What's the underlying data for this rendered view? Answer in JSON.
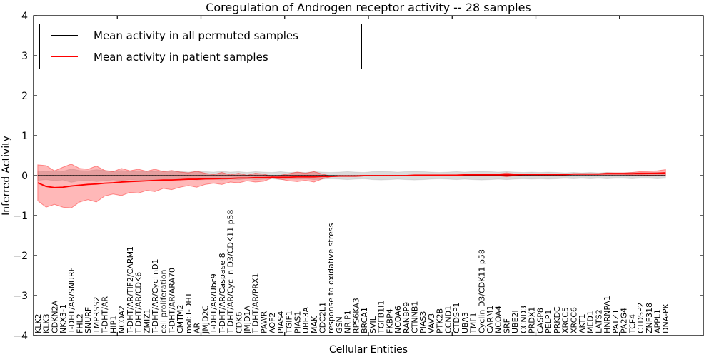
{
  "title": "Coregulation of Androgen receptor activity -- 28 samples",
  "legend": {
    "entries": [
      {
        "label": "Mean activity in all permuted samples",
        "color": "#000000"
      },
      {
        "label": "Mean activity in patient samples",
        "color": "#ff0000"
      }
    ]
  },
  "chart_data": {
    "type": "line",
    "title": "Coregulation of Androgen receptor activity -- 28 samples",
    "xlabel": "Cellular Entities",
    "ylabel": "Inferred Activity",
    "ylim": [
      -4,
      4
    ],
    "xlim": [
      0,
      80
    ],
    "ytick_values": [
      4,
      3,
      2,
      1,
      0,
      -1,
      -2,
      -3,
      -4
    ],
    "ytick_labels": [
      "4",
      "3",
      "2",
      "1",
      "0",
      "−1",
      "−2",
      "−3",
      "−4"
    ],
    "xtick_values": [
      10,
      20,
      30,
      40,
      50,
      60,
      70
    ],
    "grid": false,
    "legend_position": "upper left",
    "colors": {
      "patient_line": "#ff0000",
      "permuted_line": "#000000",
      "patient_band_fill": "#ff0000",
      "patient_band_alpha": 0.28,
      "permuted_band_fill": "#000000",
      "permuted_band_alpha": 0.14
    },
    "zero_line": {
      "y": 0,
      "style": "dotted",
      "color": "#000000"
    },
    "categories": [
      "KLK2",
      "KLK3",
      "CDKN2A",
      "NKX3-1",
      "T-DHT/AR/SNURF",
      "FHL2",
      "SNURF",
      "TMPRSS2",
      "T-DHT/AR",
      "HIP1",
      "NCOA2",
      "T-DHT/AR/TIF2/CARM1",
      "T-DHT/AR/CDK6",
      "ZMIZ1",
      "T-DHT/AR/CyclinD1",
      "cell proliferation",
      "T-DHT/AR/ARA70",
      "CMTM2",
      "mol:T-DHT",
      "AR",
      "JMJD2C",
      "T-DHT/AR/Ubc9",
      "T-DHT/AR/Caspase 8",
      "T-DHT/AR/Cyclin D3/CDK11 p58",
      "CDK6",
      "JMJD1A",
      "T-DHT/AR/PRX1",
      "PAWR",
      "AOF2",
      "PIAS4",
      "TGIF1",
      "PIAS1",
      "UBE3A",
      "MAK",
      "CDC2L1",
      "response to oxidative stress",
      "GSN",
      "NRIP1",
      "RPS6KA3",
      "BRCA1",
      "SVIL",
      "TGFB1I1",
      "FKBP4",
      "NCOA6",
      "RANBP9",
      "CTNNB1",
      "PIAS3",
      "VAV3",
      "PTK2B",
      "CCND1",
      "CTDSP1",
      "UBA3",
      "TMF1",
      "Cyclin D3/CDK11 p58",
      "CARM1",
      "NCOA4",
      "SRF",
      "UBE2I",
      "CCND3",
      "PRDX1",
      "CASP8",
      "PELP1",
      "PRKDC",
      "XRCC5",
      "XRCC6",
      "AKT1",
      "MED1",
      "LATS2",
      "HNRNPA1",
      "PATZ1",
      "PA2G4",
      "TCF4",
      "CTDSP2",
      "ZNF318",
      "APPL1",
      "DNA-PK"
    ],
    "series": [
      {
        "name": "Mean activity in all permuted samples",
        "color": "#000000",
        "values": 0,
        "band_halfwidth": [
          0.12,
          0.1,
          0.13,
          0.11,
          0.17,
          0.13,
          0.12,
          0.15,
          0.13,
          0.11,
          0.13,
          0.1,
          0.12,
          0.1,
          0.11,
          0.12,
          0.1,
          0.11,
          0.09,
          0.11,
          0.1,
          0.09,
          0.11,
          0.09,
          0.1,
          0.08,
          0.1,
          0.09,
          0.08,
          0.1,
          0.08,
          0.09,
          0.08,
          0.1,
          0.09,
          0.08,
          0.09,
          0.1,
          0.09,
          0.08,
          0.1,
          0.11,
          0.1,
          0.09,
          0.1,
          0.11,
          0.1,
          0.09,
          0.08,
          0.09,
          0.1,
          0.09,
          0.1,
          0.11,
          0.1,
          0.09,
          0.1,
          0.09,
          0.08,
          0.09,
          0.08,
          0.09,
          0.08,
          0.07,
          0.08,
          0.07,
          0.08,
          0.07,
          0.08,
          0.07,
          0.07,
          0.08,
          0.07,
          0.07,
          0.08,
          0.07
        ]
      },
      {
        "name": "Mean activity in patient samples",
        "color": "#ff0000",
        "values": [
          -0.18,
          -0.27,
          -0.3,
          -0.29,
          -0.26,
          -0.24,
          -0.22,
          -0.21,
          -0.19,
          -0.18,
          -0.16,
          -0.15,
          -0.14,
          -0.13,
          -0.12,
          -0.11,
          -0.11,
          -0.1,
          -0.09,
          -0.09,
          -0.08,
          -0.08,
          -0.07,
          -0.07,
          -0.06,
          -0.06,
          -0.05,
          -0.05,
          -0.04,
          -0.04,
          -0.04,
          -0.03,
          -0.03,
          -0.03,
          -0.02,
          -0.02,
          -0.01,
          -0.01,
          -0.01,
          0,
          0,
          0,
          0,
          0,
          0,
          0.01,
          0.01,
          0.01,
          0.01,
          0.01,
          0.01,
          0.02,
          0.02,
          0.02,
          0.02,
          0.02,
          0.02,
          0.02,
          0.03,
          0.03,
          0.03,
          0.03,
          0.03,
          0.03,
          0.04,
          0.04,
          0.04,
          0.04,
          0.05,
          0.05,
          0.05,
          0.05,
          0.06,
          0.06,
          0.06,
          0.07
        ],
        "band_halfwidth": [
          0.45,
          0.52,
          0.42,
          0.5,
          0.55,
          0.42,
          0.38,
          0.45,
          0.32,
          0.28,
          0.34,
          0.27,
          0.3,
          0.24,
          0.28,
          0.21,
          0.24,
          0.19,
          0.16,
          0.2,
          0.14,
          0.11,
          0.15,
          0.09,
          0.12,
          0.07,
          0.11,
          0.09,
          0.02,
          0.05,
          0.09,
          0.12,
          0.09,
          0.13,
          0.06,
          0.01,
          0.01,
          0.01,
          0.01,
          0.01,
          0.01,
          0.01,
          0.01,
          0.01,
          0.01,
          0.01,
          0.01,
          0.01,
          0.01,
          0.01,
          0.01,
          0.01,
          0.01,
          0.01,
          0.01,
          0.02,
          0.05,
          0.02,
          0.01,
          0.01,
          0.01,
          0.01,
          0.01,
          0.01,
          0.01,
          0.01,
          0.01,
          0.01,
          0.02,
          0.02,
          0.02,
          0.03,
          0.04,
          0.05,
          0.06,
          0.08
        ]
      }
    ]
  }
}
